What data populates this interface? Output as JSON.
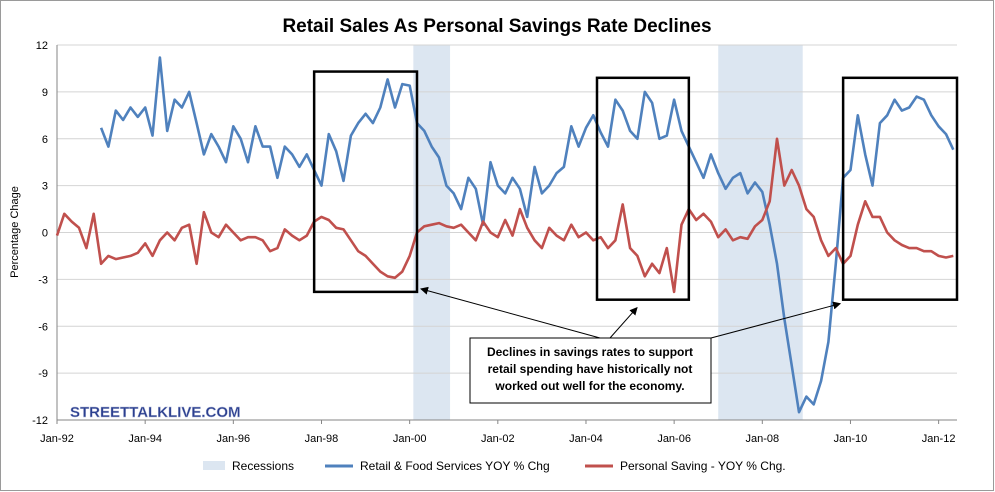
{
  "chart_data": {
    "type": "line",
    "title": "Retail Sales As Personal Savings Rate Declines",
    "xlabel": "",
    "ylabel": "Percentage Chage",
    "x_range": [
      "1992-01",
      "2012-06"
    ],
    "ylim": [
      -12,
      12
    ],
    "y_ticks": [
      12,
      9,
      6,
      3,
      0,
      -3,
      -6,
      -9,
      -12
    ],
    "x_ticks": [
      {
        "label": "Jan-92",
        "date": "1992-01"
      },
      {
        "label": "Jan-94",
        "date": "1994-01"
      },
      {
        "label": "Jan-96",
        "date": "1996-01"
      },
      {
        "label": "Jan-98",
        "date": "1998-01"
      },
      {
        "label": "Jan-00",
        "date": "2000-01"
      },
      {
        "label": "Jan-02",
        "date": "2002-01"
      },
      {
        "label": "Jan-04",
        "date": "2004-01"
      },
      {
        "label": "Jan-06",
        "date": "2006-01"
      },
      {
        "label": "Jan-08",
        "date": "2008-01"
      },
      {
        "label": "Jan-10",
        "date": "2010-01"
      },
      {
        "label": "Jan-12",
        "date": "2012-01"
      }
    ],
    "grid": "horizontal",
    "legend_position": "bottom",
    "recessions": [
      {
        "start": "2000-02",
        "end": "2000-12"
      },
      {
        "start": "2007-01",
        "end": "2008-12"
      }
    ],
    "highlight_boxes": [
      {
        "start": "1997-11",
        "end": "2000-03",
        "ymin": -3.8,
        "ymax": 10.3
      },
      {
        "start": "2004-04",
        "end": "2006-05",
        "ymin": -4.3,
        "ymax": 9.9
      },
      {
        "start": "2009-11",
        "end": "2012-06",
        "ymin": -4.3,
        "ymax": 9.9
      }
    ],
    "annotation": {
      "lines": [
        "Declines in savings rates to support",
        "retail spending have historically not",
        "worked out well for the economy."
      ]
    },
    "watermark": "STREETTALKLIVE.COM",
    "series": [
      {
        "name": "Retail & Food Services YOY % Chg",
        "color": "#4f81bd",
        "points": [
          [
            "1993-01",
            6.7
          ],
          [
            "1993-03",
            5.5
          ],
          [
            "1993-05",
            7.8
          ],
          [
            "1993-07",
            7.2
          ],
          [
            "1993-09",
            8.0
          ],
          [
            "1993-11",
            7.4
          ],
          [
            "1994-01",
            8.0
          ],
          [
            "1994-03",
            6.2
          ],
          [
            "1994-05",
            11.2
          ],
          [
            "1994-07",
            6.5
          ],
          [
            "1994-09",
            8.5
          ],
          [
            "1994-11",
            8.0
          ],
          [
            "1995-01",
            9.0
          ],
          [
            "1995-03",
            7.0
          ],
          [
            "1995-05",
            5.0
          ],
          [
            "1995-07",
            6.3
          ],
          [
            "1995-09",
            5.5
          ],
          [
            "1995-11",
            4.5
          ],
          [
            "1996-01",
            6.8
          ],
          [
            "1996-03",
            6.0
          ],
          [
            "1996-05",
            4.5
          ],
          [
            "1996-07",
            6.8
          ],
          [
            "1996-09",
            5.5
          ],
          [
            "1996-11",
            5.5
          ],
          [
            "1997-01",
            3.5
          ],
          [
            "1997-03",
            5.5
          ],
          [
            "1997-05",
            5.0
          ],
          [
            "1997-07",
            4.2
          ],
          [
            "1997-09",
            5.0
          ],
          [
            "1997-11",
            4.0
          ],
          [
            "1998-01",
            3.0
          ],
          [
            "1998-03",
            6.3
          ],
          [
            "1998-05",
            5.2
          ],
          [
            "1998-07",
            3.3
          ],
          [
            "1998-09",
            6.2
          ],
          [
            "1998-11",
            7.0
          ],
          [
            "1999-01",
            7.6
          ],
          [
            "1999-03",
            7.0
          ],
          [
            "1999-05",
            8.0
          ],
          [
            "1999-07",
            9.8
          ],
          [
            "1999-09",
            8.0
          ],
          [
            "1999-11",
            9.5
          ],
          [
            "2000-01",
            9.4
          ],
          [
            "2000-03",
            7.0
          ],
          [
            "2000-05",
            6.5
          ],
          [
            "2000-07",
            5.5
          ],
          [
            "2000-09",
            4.8
          ],
          [
            "2000-11",
            3.0
          ],
          [
            "2001-01",
            2.5
          ],
          [
            "2001-03",
            1.5
          ],
          [
            "2001-05",
            3.5
          ],
          [
            "2001-07",
            2.8
          ],
          [
            "2001-09",
            0.5
          ],
          [
            "2001-11",
            4.5
          ],
          [
            "2002-01",
            3.0
          ],
          [
            "2002-03",
            2.5
          ],
          [
            "2002-05",
            3.5
          ],
          [
            "2002-07",
            2.8
          ],
          [
            "2002-09",
            1.0
          ],
          [
            "2002-11",
            4.2
          ],
          [
            "2003-01",
            2.5
          ],
          [
            "2003-03",
            3.0
          ],
          [
            "2003-05",
            3.8
          ],
          [
            "2003-07",
            4.2
          ],
          [
            "2003-09",
            6.8
          ],
          [
            "2003-11",
            5.5
          ],
          [
            "2004-01",
            6.7
          ],
          [
            "2004-03",
            7.5
          ],
          [
            "2004-05",
            6.4
          ],
          [
            "2004-07",
            5.5
          ],
          [
            "2004-09",
            8.5
          ],
          [
            "2004-11",
            7.8
          ],
          [
            "2005-01",
            6.5
          ],
          [
            "2005-03",
            6.0
          ],
          [
            "2005-05",
            9.0
          ],
          [
            "2005-07",
            8.3
          ],
          [
            "2005-09",
            6.0
          ],
          [
            "2005-11",
            6.2
          ],
          [
            "2006-01",
            8.5
          ],
          [
            "2006-03",
            6.5
          ],
          [
            "2006-05",
            5.5
          ],
          [
            "2006-07",
            4.5
          ],
          [
            "2006-09",
            3.5
          ],
          [
            "2006-11",
            5.0
          ],
          [
            "2007-01",
            3.8
          ],
          [
            "2007-03",
            2.8
          ],
          [
            "2007-05",
            3.5
          ],
          [
            "2007-07",
            3.8
          ],
          [
            "2007-09",
            2.5
          ],
          [
            "2007-11",
            3.2
          ],
          [
            "2008-01",
            2.6
          ],
          [
            "2008-03",
            0.5
          ],
          [
            "2008-05",
            -2.0
          ],
          [
            "2008-07",
            -5.5
          ],
          [
            "2008-09",
            -8.5
          ],
          [
            "2008-11",
            -11.5
          ],
          [
            "2009-01",
            -10.5
          ],
          [
            "2009-03",
            -11.0
          ],
          [
            "2009-05",
            -9.5
          ],
          [
            "2009-07",
            -7.0
          ],
          [
            "2009-09",
            -2.0
          ],
          [
            "2009-11",
            3.5
          ],
          [
            "2010-01",
            4.0
          ],
          [
            "2010-03",
            7.5
          ],
          [
            "2010-05",
            5.0
          ],
          [
            "2010-07",
            3.0
          ],
          [
            "2010-09",
            7.0
          ],
          [
            "2010-11",
            7.5
          ],
          [
            "2011-01",
            8.5
          ],
          [
            "2011-03",
            7.8
          ],
          [
            "2011-05",
            8.0
          ],
          [
            "2011-07",
            8.7
          ],
          [
            "2011-09",
            8.5
          ],
          [
            "2011-11",
            7.5
          ],
          [
            "2012-01",
            6.8
          ],
          [
            "2012-03",
            6.3
          ],
          [
            "2012-05",
            5.3
          ]
        ]
      },
      {
        "name": "Personal Saving - YOY % Chg.",
        "color": "#c0504d",
        "points": [
          [
            "1992-01",
            -0.2
          ],
          [
            "1992-03",
            1.2
          ],
          [
            "1992-05",
            0.7
          ],
          [
            "1992-07",
            0.3
          ],
          [
            "1992-09",
            -1.0
          ],
          [
            "1992-11",
            1.2
          ],
          [
            "1993-01",
            -2.0
          ],
          [
            "1993-03",
            -1.5
          ],
          [
            "1993-05",
            -1.7
          ],
          [
            "1993-07",
            -1.6
          ],
          [
            "1993-09",
            -1.5
          ],
          [
            "1993-11",
            -1.3
          ],
          [
            "1994-01",
            -0.7
          ],
          [
            "1994-03",
            -1.5
          ],
          [
            "1994-05",
            -0.5
          ],
          [
            "1994-07",
            0.0
          ],
          [
            "1994-09",
            -0.5
          ],
          [
            "1994-11",
            0.3
          ],
          [
            "1995-01",
            0.5
          ],
          [
            "1995-03",
            -2.0
          ],
          [
            "1995-05",
            1.3
          ],
          [
            "1995-07",
            0.0
          ],
          [
            "1995-09",
            -0.3
          ],
          [
            "1995-11",
            0.5
          ],
          [
            "1996-01",
            0.0
          ],
          [
            "1996-03",
            -0.5
          ],
          [
            "1996-05",
            -0.3
          ],
          [
            "1996-07",
            -0.3
          ],
          [
            "1996-09",
            -0.5
          ],
          [
            "1996-11",
            -1.2
          ],
          [
            "1997-01",
            -1.0
          ],
          [
            "1997-03",
            0.2
          ],
          [
            "1997-05",
            -0.2
          ],
          [
            "1997-07",
            -0.5
          ],
          [
            "1997-09",
            -0.2
          ],
          [
            "1997-11",
            0.7
          ],
          [
            "1998-01",
            1.0
          ],
          [
            "1998-03",
            0.8
          ],
          [
            "1998-05",
            0.3
          ],
          [
            "1998-07",
            0.2
          ],
          [
            "1998-09",
            -0.5
          ],
          [
            "1998-11",
            -1.2
          ],
          [
            "1999-01",
            -1.5
          ],
          [
            "1999-03",
            -2.0
          ],
          [
            "1999-05",
            -2.5
          ],
          [
            "1999-07",
            -2.8
          ],
          [
            "1999-09",
            -2.9
          ],
          [
            "1999-11",
            -2.5
          ],
          [
            "2000-01",
            -1.5
          ],
          [
            "2000-03",
            0.0
          ],
          [
            "2000-05",
            0.4
          ],
          [
            "2000-07",
            0.5
          ],
          [
            "2000-09",
            0.6
          ],
          [
            "2000-11",
            0.4
          ],
          [
            "2001-01",
            0.3
          ],
          [
            "2001-03",
            0.5
          ],
          [
            "2001-05",
            0.0
          ],
          [
            "2001-07",
            -0.5
          ],
          [
            "2001-09",
            0.7
          ],
          [
            "2001-11",
            0.0
          ],
          [
            "2002-01",
            -0.3
          ],
          [
            "2002-03",
            0.8
          ],
          [
            "2002-05",
            -0.2
          ],
          [
            "2002-07",
            1.5
          ],
          [
            "2002-09",
            0.3
          ],
          [
            "2002-11",
            -0.5
          ],
          [
            "2003-01",
            -1.0
          ],
          [
            "2003-03",
            0.3
          ],
          [
            "2003-05",
            -0.2
          ],
          [
            "2003-07",
            -0.5
          ],
          [
            "2003-09",
            0.5
          ],
          [
            "2003-11",
            -0.3
          ],
          [
            "2004-01",
            0.0
          ],
          [
            "2004-03",
            -0.5
          ],
          [
            "2004-05",
            -0.3
          ],
          [
            "2004-07",
            -1.0
          ],
          [
            "2004-09",
            -0.5
          ],
          [
            "2004-11",
            1.8
          ],
          [
            "2005-01",
            -1.0
          ],
          [
            "2005-03",
            -1.5
          ],
          [
            "2005-05",
            -2.8
          ],
          [
            "2005-07",
            -2.0
          ],
          [
            "2005-09",
            -2.6
          ],
          [
            "2005-11",
            -1.0
          ],
          [
            "2006-01",
            -3.8
          ],
          [
            "2006-03",
            0.5
          ],
          [
            "2006-05",
            1.5
          ],
          [
            "2006-07",
            0.8
          ],
          [
            "2006-09",
            1.2
          ],
          [
            "2006-11",
            0.7
          ],
          [
            "2007-01",
            -0.3
          ],
          [
            "2007-03",
            0.2
          ],
          [
            "2007-05",
            -0.5
          ],
          [
            "2007-07",
            -0.3
          ],
          [
            "2007-09",
            -0.4
          ],
          [
            "2007-11",
            0.4
          ],
          [
            "2008-01",
            0.8
          ],
          [
            "2008-03",
            2.0
          ],
          [
            "2008-05",
            6.0
          ],
          [
            "2008-07",
            3.0
          ],
          [
            "2008-09",
            4.0
          ],
          [
            "2008-11",
            3.0
          ],
          [
            "2009-01",
            1.5
          ],
          [
            "2009-03",
            1.0
          ],
          [
            "2009-05",
            -0.5
          ],
          [
            "2009-07",
            -1.5
          ],
          [
            "2009-09",
            -1.0
          ],
          [
            "2009-11",
            -2.0
          ],
          [
            "2010-01",
            -1.5
          ],
          [
            "2010-03",
            0.5
          ],
          [
            "2010-05",
            2.0
          ],
          [
            "2010-07",
            1.0
          ],
          [
            "2010-09",
            1.0
          ],
          [
            "2010-11",
            0.0
          ],
          [
            "2011-01",
            -0.5
          ],
          [
            "2011-03",
            -0.8
          ],
          [
            "2011-05",
            -1.0
          ],
          [
            "2011-07",
            -1.0
          ],
          [
            "2011-09",
            -1.2
          ],
          [
            "2011-11",
            -1.2
          ],
          [
            "2012-01",
            -1.5
          ],
          [
            "2012-03",
            -1.6
          ],
          [
            "2012-05",
            -1.5
          ]
        ]
      }
    ],
    "legend": [
      {
        "label": "Recessions",
        "kind": "swatch",
        "color": "#dce6f1"
      },
      {
        "label": "Retail & Food Services YOY % Chg",
        "kind": "line",
        "color": "#4f81bd"
      },
      {
        "label": "Personal Saving - YOY % Chg.",
        "kind": "line",
        "color": "#c0504d"
      }
    ]
  }
}
